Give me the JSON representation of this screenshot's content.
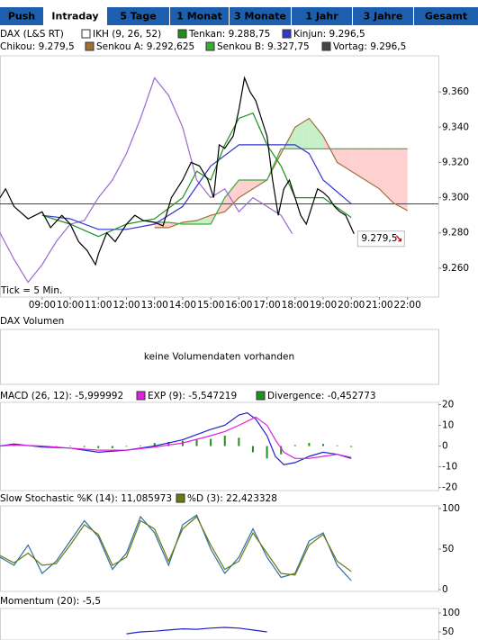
{
  "tabs": {
    "items": [
      "Push",
      "Intraday",
      "5 Tage",
      "1 Monat",
      "3 Monate",
      "1 Jahr",
      "3 Jahre",
      "Gesamt"
    ],
    "active": 1
  },
  "chart_data": [
    {
      "type": "ichimoku",
      "indicator": {
        "name": "IKH (9, 26, 52)",
        "color": "#ffffff"
      },
      "note": "Tick = 5 Min.",
      "last_label": "9.279,5",
      "xlim": [
        7.5,
        23.1
      ],
      "xticks": [
        {
          "value": 9,
          "label": "09:00"
        },
        {
          "value": 10,
          "label": "10:00"
        },
        {
          "value": 11,
          "label": "11:00"
        },
        {
          "value": 12,
          "label": "12:00"
        },
        {
          "value": 13,
          "label": "13:00"
        },
        {
          "value": 14,
          "label": "14:00"
        },
        {
          "value": 15,
          "label": "15:00"
        },
        {
          "value": 16,
          "label": "16:00"
        },
        {
          "value": 17,
          "label": "17:00"
        },
        {
          "value": 18,
          "label": "18:00"
        },
        {
          "value": 19,
          "label": "19:00"
        },
        {
          "value": 20,
          "label": "20:00"
        },
        {
          "value": 21,
          "label": "21:00"
        },
        {
          "value": 22,
          "label": "22:00"
        }
      ],
      "ylim": [
        9243.6,
        9380.5
      ],
      "yticks": [
        {
          "value": 9260,
          "label": "9.260"
        },
        {
          "value": 9280,
          "label": "9.280"
        },
        {
          "value": 9300,
          "label": "9.300"
        },
        {
          "value": 9320,
          "label": "9.320"
        },
        {
          "value": 9340,
          "label": "9.340"
        },
        {
          "value": 9360,
          "label": "9.360"
        }
      ],
      "cloud": {
        "up": "#c8f0c8",
        "down": "#ffd0d0"
      },
      "reference": {
        "name": "Vortag: 9.296,5",
        "value": 9296.5,
        "color": "#444444"
      },
      "series": [
        {
          "name": "DAX (L&S RT)",
          "color": "#000000",
          "x": [
            7.5,
            7.7,
            8.0,
            8.5,
            9.0,
            9.3,
            9.7,
            10.0,
            10.3,
            10.6,
            10.9,
            11.0,
            11.3,
            11.6,
            12.0,
            12.3,
            12.6,
            13.0,
            13.3,
            13.6,
            14.0,
            14.3,
            14.6,
            14.9,
            15.1,
            15.3,
            15.5,
            15.8,
            16.0,
            16.2,
            16.4,
            16.6,
            16.8,
            17.0,
            17.2,
            17.4,
            17.6,
            17.8,
            18.0,
            18.2,
            18.4,
            18.6,
            18.8,
            19.0,
            19.2,
            19.4,
            19.6,
            19.8,
            20.0,
            20.1
          ],
          "values": [
            9300,
            9305,
            9295,
            9288,
            9292,
            9283,
            9290,
            9285,
            9275,
            9270,
            9262,
            9268,
            9280,
            9275,
            9285,
            9290,
            9287,
            9286,
            9284,
            9300,
            9310,
            9320,
            9318,
            9310,
            9300,
            9330,
            9328,
            9335,
            9350,
            9368,
            9360,
            9355,
            9345,
            9335,
            9310,
            9290,
            9305,
            9310,
            9300,
            9290,
            9285,
            9295,
            9305,
            9303,
            9300,
            9295,
            9292,
            9290,
            9283,
            9279.5
          ]
        },
        {
          "name": "Tenkan: 9.288,75",
          "color": "#1f8f1f",
          "x": [
            9,
            10,
            11,
            12,
            13,
            14,
            14.5,
            15,
            15.5,
            16,
            16.5,
            17,
            17.5,
            18,
            19,
            20
          ],
          "values": [
            9290,
            9285,
            9278,
            9285,
            9288,
            9300,
            9315,
            9310,
            9330,
            9345,
            9348,
            9330,
            9318,
            9300,
            9300,
            9288.75
          ]
        },
        {
          "name": "Kinjun: 9.296,5",
          "color": "#3535d0",
          "x": [
            9,
            10,
            11,
            12,
            13,
            14,
            15,
            16,
            17,
            18,
            18.5,
            19,
            20
          ],
          "values": [
            9290,
            9288,
            9282,
            9282,
            9285,
            9295,
            9318,
            9330,
            9330,
            9330,
            9325,
            9310,
            9296.5
          ]
        },
        {
          "name": "Chikou: 9.279,5",
          "color": "#9a6ad0",
          "x": [
            7.5,
            8,
            8.5,
            9,
            9.5,
            10,
            10.5,
            11,
            11.5,
            12,
            12.5,
            13,
            13.5,
            14,
            14.5,
            15,
            15.5,
            16,
            16.5,
            17,
            17.5,
            17.9
          ],
          "values": [
            9280,
            9265,
            9252,
            9262,
            9275,
            9285,
            9287,
            9300,
            9310,
            9325,
            9345,
            9368,
            9358,
            9340,
            9310,
            9300,
            9305,
            9292,
            9300,
            9295,
            9290,
            9279.5
          ]
        },
        {
          "name": "Senkou A: 9.292,625",
          "color": "#a0703a",
          "cloud_edge": true,
          "x": [
            13,
            13.5,
            14,
            14.5,
            15,
            15.5,
            16,
            16.5,
            17,
            17.5,
            18,
            18.5,
            19,
            19.5,
            20,
            20.5,
            21,
            21.5,
            22
          ],
          "values": [
            9283,
            9283,
            9286,
            9287,
            9290,
            9292,
            9300,
            9305,
            9310,
            9325,
            9340,
            9345,
            9335,
            9320,
            9315,
            9310,
            9305,
            9297,
            9292.625
          ]
        },
        {
          "name": "Senkou B: 9.327,75",
          "color": "#3aaa3a",
          "cloud_edge": true,
          "x": [
            13,
            13.5,
            14,
            14.5,
            15,
            15.5,
            16,
            16.5,
            17,
            17.5,
            18,
            18.5,
            19,
            19.5,
            20,
            20.5,
            21,
            21.5,
            22
          ],
          "values": [
            9286,
            9286,
            9285,
            9285,
            9285,
            9300,
            9310,
            9310,
            9310,
            9327.75,
            9327.75,
            9327.75,
            9327.75,
            9327.75,
            9327.75,
            9327.75,
            9327.75,
            9327.75,
            9327.75
          ]
        }
      ]
    },
    {
      "type": "message",
      "title": "DAX Volumen",
      "message": "keine Volumendaten vorhanden"
    },
    {
      "type": "macd",
      "xlim": [
        7.5,
        23.1
      ],
      "ylim": [
        -21.5,
        21.1
      ],
      "yticks": [
        -20,
        -10,
        0,
        10,
        20
      ],
      "series": [
        {
          "name": "MACD (26, 12): -5,999992",
          "color": "#2222cc",
          "style": "line",
          "x": [
            7.5,
            8,
            9,
            10,
            11,
            12,
            13,
            14,
            15,
            15.5,
            16,
            16.3,
            16.6,
            17,
            17.3,
            17.6,
            18,
            18.5,
            19,
            19.5,
            20
          ],
          "values": [
            0,
            1,
            -0.5,
            -1,
            -3,
            -2,
            0,
            3,
            8,
            10,
            15,
            16,
            13,
            5,
            -5,
            -9,
            -8,
            -5,
            -3,
            -4,
            -6
          ]
        },
        {
          "name": "EXP (9): -5,547219",
          "color": "#e020e0",
          "style": "line",
          "x": [
            7.5,
            8,
            9,
            10,
            11,
            12,
            13,
            14,
            15,
            15.5,
            16,
            16.3,
            16.6,
            17,
            17.3,
            17.6,
            18,
            18.5,
            19,
            19.5,
            20
          ],
          "values": [
            0,
            0.5,
            0,
            -1,
            -2,
            -2,
            -0.5,
            1.5,
            5,
            7,
            10,
            12,
            14,
            10,
            3,
            -3,
            -6,
            -6,
            -5,
            -4,
            -5.5
          ]
        },
        {
          "name": "Divergence: -0,452773",
          "color": "#1f8f1f",
          "style": "bar",
          "x": [
            8,
            8.5,
            9,
            9.5,
            10,
            10.5,
            11,
            11.5,
            12,
            12.5,
            13,
            13.5,
            14,
            14.5,
            15,
            15.5,
            16,
            16.5,
            17,
            17.5,
            18,
            18.5,
            19,
            19.5,
            20
          ],
          "values": [
            0.5,
            0.3,
            -0.3,
            0,
            0.2,
            -0.5,
            -1,
            -1,
            -0.3,
            0.3,
            1.5,
            2,
            2.5,
            3,
            3.5,
            5,
            4,
            -3,
            -6,
            -4,
            0.5,
            1.5,
            1,
            0.3,
            -0.45
          ]
        }
      ]
    },
    {
      "type": "line",
      "xlim": [
        7.5,
        23.1
      ],
      "ylim": [
        -2.2,
        103.3
      ],
      "yticks": [
        0,
        50,
        100
      ],
      "series": [
        {
          "name": "Slow Stochastic %K (14): 11,085973",
          "color": "#2f6fa8",
          "x": [
            7.5,
            8,
            8.5,
            9,
            9.5,
            10,
            10.5,
            11,
            11.5,
            12,
            12.5,
            13,
            13.5,
            14,
            14.5,
            15,
            15.5,
            16,
            16.5,
            17,
            17.5,
            18,
            18.5,
            19,
            19.5,
            20
          ],
          "values": [
            40,
            30,
            55,
            20,
            35,
            60,
            85,
            65,
            25,
            45,
            90,
            70,
            30,
            80,
            92,
            50,
            20,
            40,
            75,
            40,
            15,
            20,
            60,
            70,
            30,
            11.085973
          ]
        },
        {
          "name": "%D (3): 22,423328",
          "color": "#6b7a10",
          "x": [
            7.5,
            8,
            8.5,
            9,
            9.5,
            10,
            10.5,
            11,
            11.5,
            12,
            12.5,
            13,
            13.5,
            14,
            14.5,
            15,
            15.5,
            16,
            16.5,
            17,
            17.5,
            18,
            18.5,
            19,
            19.5,
            20
          ],
          "values": [
            42,
            33,
            45,
            30,
            32,
            55,
            80,
            68,
            30,
            40,
            85,
            75,
            35,
            75,
            90,
            55,
            25,
            35,
            70,
            45,
            20,
            18,
            55,
            68,
            35,
            22.423328
          ]
        }
      ]
    },
    {
      "type": "line",
      "xlim": [
        7.5,
        23.1
      ],
      "ylim": [
        28.6,
        111.9
      ],
      "yticks": [
        50,
        100
      ],
      "series": [
        {
          "name": "Momentum (20): -5,5",
          "color": "#2222cc",
          "x": [
            12,
            12.5,
            13,
            13.5,
            14,
            14.5,
            15,
            15.5,
            16,
            16.5,
            17
          ],
          "values": [
            45,
            50,
            52,
            55,
            58,
            57,
            60,
            62,
            60,
            55,
            50
          ]
        }
      ]
    }
  ]
}
